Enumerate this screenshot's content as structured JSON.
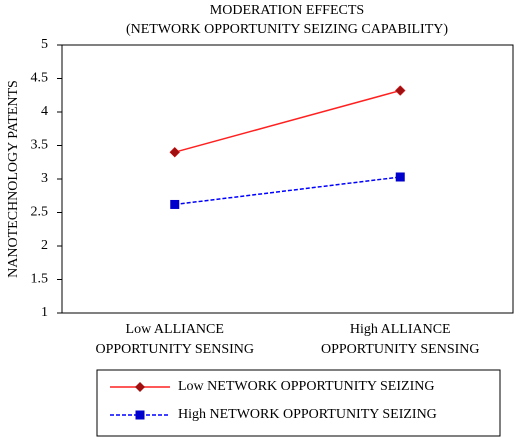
{
  "chart_data": {
    "type": "line",
    "title": "MODERATION EFFECTS",
    "subtitle": "(NETWORK OPPORTUNITY SEIZING CAPABILITY)",
    "y_label": "NANOTECHNOLOGY PATENTS",
    "categories": [
      "Low ALLIANCE OPPORTUNITY SENSING",
      "High ALLIANCE OPPORTUNITY SENSING"
    ],
    "series": [
      {
        "name": "Low NETWORK OPPORTUNITY SEIZING",
        "color": "#ff2020",
        "marker_color": "#a01010",
        "marker": "diamond",
        "dash": false,
        "values": [
          3.4,
          4.32
        ]
      },
      {
        "name": "High NETWORK OPPORTUNITY SEIZING",
        "color": "#0000ff",
        "marker_color": "#0000cc",
        "marker": "square",
        "dash": true,
        "values": [
          2.62,
          3.03
        ]
      }
    ],
    "ylim": [
      1,
      5
    ],
    "yticks": [
      1,
      1.5,
      2,
      2.5,
      3,
      3.5,
      4,
      4.5,
      5
    ],
    "grid": false,
    "legend": "bottom"
  }
}
